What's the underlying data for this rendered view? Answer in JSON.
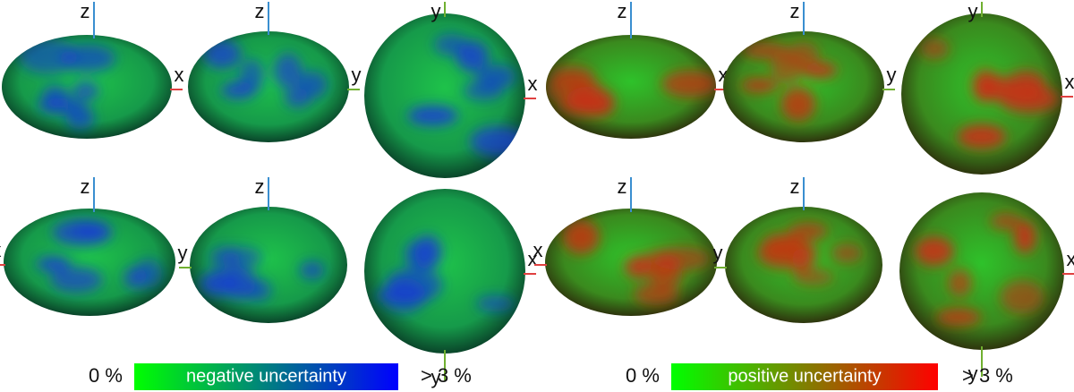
{
  "views": [
    [
      [
        "z",
        "x"
      ],
      [
        "z",
        "y"
      ],
      [
        "y",
        "x"
      ],
      [
        "z",
        "x"
      ],
      [
        "z",
        "y"
      ],
      [
        "y",
        "x"
      ]
    ],
    [
      [
        "z",
        "x"
      ],
      [
        "z",
        "y"
      ],
      [
        "y",
        "x"
      ],
      [
        "z",
        "x"
      ],
      [
        "z",
        "y"
      ],
      [
        "y",
        "x"
      ]
    ]
  ],
  "colorbars": [
    {
      "min_label": "0 %",
      "title": "negative uncertainty",
      "max_label": "> 3 %",
      "colors": [
        "#00ff00",
        "#0000ff"
      ]
    },
    {
      "min_label": "0 %",
      "title": "positive uncertainty",
      "max_label": "> 3 %",
      "colors": [
        "#00ff00",
        "#ff0000"
      ]
    }
  ]
}
